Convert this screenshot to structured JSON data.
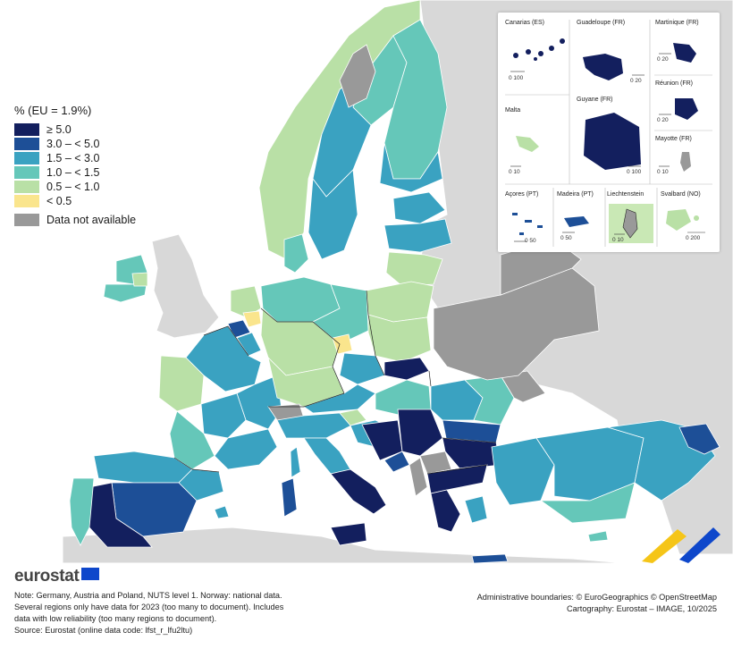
{
  "legend": {
    "title": "% (EU = 1.9%)",
    "classes": [
      {
        "label": "≥ 5.0",
        "color": "#131f5e"
      },
      {
        "label": "3.0 – < 5.0",
        "color": "#1d4f97"
      },
      {
        "label": "1.5 – < 3.0",
        "color": "#3aa2c1"
      },
      {
        "label": "1.0 – < 1.5",
        "color": "#65c7b9"
      },
      {
        "label": "0.5 – < 1.0",
        "color": "#b9e0a6"
      },
      {
        "label": "< 0.5",
        "color": "#fae58d"
      }
    ],
    "na_label": "Data not available",
    "na_color": "#999999"
  },
  "colors": {
    "sea": "#ffffff",
    "non_eu_land": "#d8d8d8",
    "border": "#ffffff",
    "country_border": "#222222"
  },
  "insets": {
    "labels": {
      "canarias": "Canarias (ES)",
      "guadeloupe": "Guadeloupe (FR)",
      "martinique": "Martinique (FR)",
      "malta": "Malta",
      "guyane": "Guyane (FR)",
      "reunion": "Réunion (FR)",
      "mayotte": "Mayotte (FR)",
      "acores": "Açores (PT)",
      "madeira": "Madeira (PT)",
      "liechtenstein": "Liechtenstein",
      "svalbard": "Svalbard (NO)"
    },
    "scales": {
      "canarias": "0   100",
      "guadeloupe": "0   20",
      "martinique": "0   20",
      "malta": "0   10",
      "guyane": "0   100",
      "reunion": "0   20",
      "mayotte": "0   10",
      "acores": "0   50",
      "madeira": "0   50",
      "liechtenstein": "0   10",
      "svalbard": "0   200"
    }
  },
  "footer": {
    "brand": "eurostat",
    "note_lines": [
      "Note: Germany, Austria and Poland, NUTS level 1. Norway: national data.",
      "Several regions only have data for 2023 (too many to document). Includes",
      "data with low reliability (too many regions to document).",
      "Source: Eurostat (online data code: lfst_r_lfu2ltu)"
    ],
    "credit_lines": [
      "Administrative boundaries: © EuroGeographics © OpenStreetMap",
      "Cartography: Eurostat – IMAGE, 10/2025"
    ]
  }
}
